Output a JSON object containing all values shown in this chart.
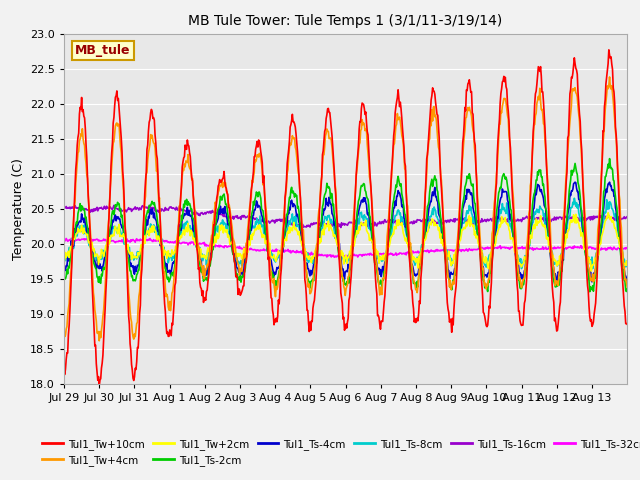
{
  "title": "MB Tule Tower: Tule Temps 1 (3/1/11-3/19/14)",
  "ylabel": "Temperature (C)",
  "ylim": [
    18.0,
    23.0
  ],
  "yticks": [
    18.0,
    18.5,
    19.0,
    19.5,
    20.0,
    20.5,
    21.0,
    21.5,
    22.0,
    22.5,
    23.0
  ],
  "xtick_labels": [
    "Jul 29",
    "Jul 30",
    "Jul 31",
    "Aug 1",
    "Aug 2",
    "Aug 3",
    "Aug 4",
    "Aug 5",
    "Aug 6",
    "Aug 7",
    "Aug 8",
    "Aug 9",
    "Aug 10",
    "Aug 11",
    "Aug 12",
    "Aug 13"
  ],
  "plot_bg_color": "#e8e8e8",
  "fig_bg_color": "#f2f2f2",
  "grid_color": "#ffffff",
  "series_colors": {
    "Tul1_Tw+10cm": "#ff0000",
    "Tul1_Tw+4cm": "#ff9900",
    "Tul1_Tw+2cm": "#ffff00",
    "Tul1_Ts-2cm": "#00cc00",
    "Tul1_Ts-4cm": "#0000cc",
    "Tul1_Ts-8cm": "#00cccc",
    "Tul1_Ts-16cm": "#9900cc",
    "Tul1_Ts-32cm": "#ff00ff"
  },
  "annotation_text": "MB_tule",
  "annotation_box_color": "#ffffcc",
  "annotation_box_edge": "#cc9900",
  "linewidth": 1.2
}
